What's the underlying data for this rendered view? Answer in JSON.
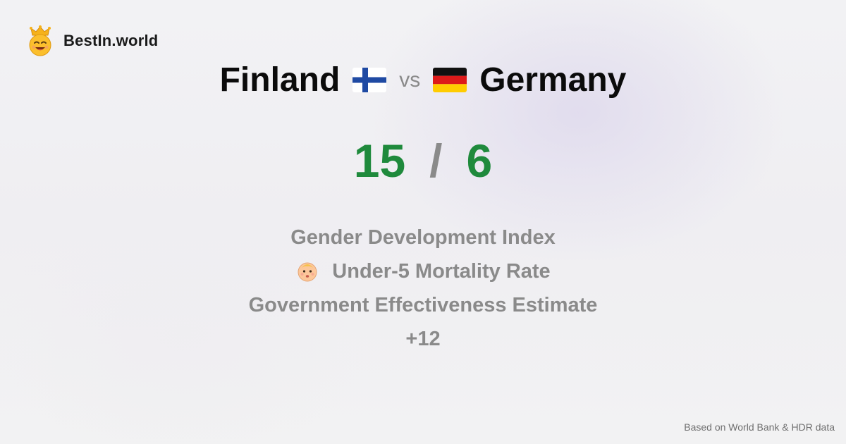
{
  "brand": {
    "name": "BestIn.world",
    "logo_icon": "crowned-smiley-icon"
  },
  "comparison": {
    "left_country": "Finland",
    "left_flag": "finland-flag-icon",
    "vs_label": "vs",
    "right_country": "Germany",
    "right_flag": "germany-flag-icon"
  },
  "scores": {
    "left": "15",
    "separator": "/",
    "right": "6",
    "color": "#1f8a3c"
  },
  "metrics": [
    {
      "label": "Gender Development Index",
      "icon": ""
    },
    {
      "label": "Under-5 Mortality Rate",
      "icon": "baby-face-icon"
    },
    {
      "label": "Government Effectiveness Estimate",
      "icon": ""
    },
    {
      "label": "+12",
      "icon": ""
    }
  ],
  "footer": {
    "source": "Based on World Bank & HDR data"
  }
}
